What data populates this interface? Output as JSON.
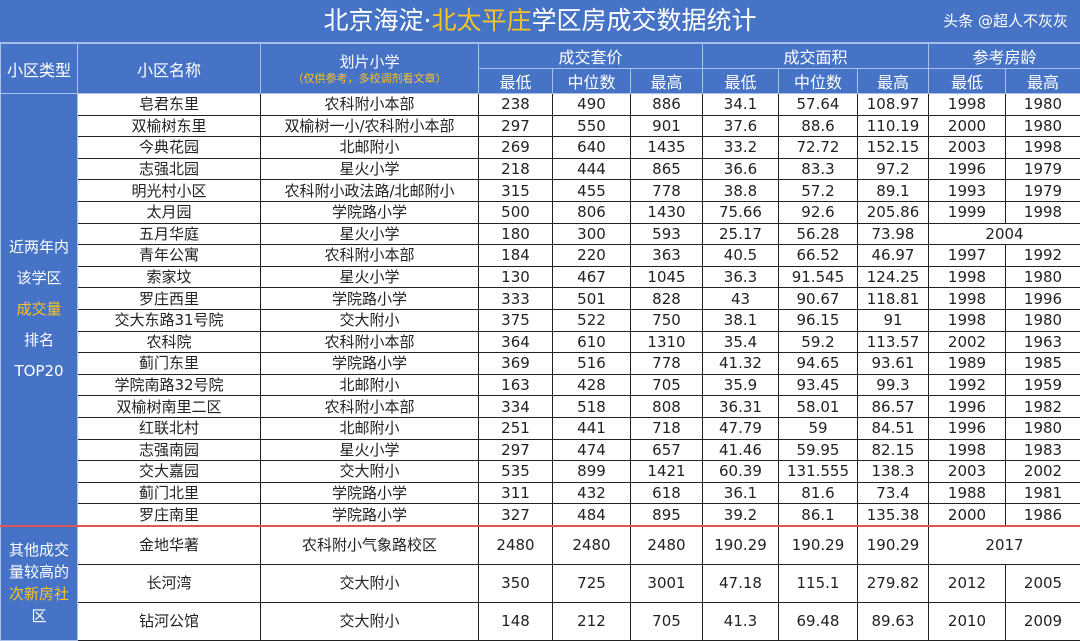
{
  "title": {
    "part1": "北京海淀·",
    "highlight": "北太平庄",
    "part2": "学区房成交数据统计"
  },
  "headers": {
    "type": "小区类型",
    "name": "小区名称",
    "school": "划片小学",
    "school_note": "（仅供参考，多校调剂看文章）",
    "price": "成交套价",
    "area": "成交面积",
    "age": "参考房龄",
    "min": "最低",
    "median": "中位数",
    "max": "最高"
  },
  "group1": {
    "lines": [
      "近两年内",
      "该学区",
      "成交量",
      "排名",
      "TOP20"
    ],
    "highlight_index": 2
  },
  "group2": {
    "lines": [
      "其他成交",
      "量较高的",
      "次新房社",
      "区"
    ],
    "highlight_text": "次新房"
  },
  "rows": [
    {
      "name": "皂君东里",
      "school": "农科附小本部",
      "price": [
        "238",
        "490",
        "886"
      ],
      "area": [
        "34.1",
        "57.64",
        "108.97"
      ],
      "age": [
        "1998",
        "1980"
      ]
    },
    {
      "name": "双榆树东里",
      "school": "双榆树一小/农科附小本部",
      "price": [
        "297",
        "550",
        "901"
      ],
      "area": [
        "37.6",
        "88.6",
        "110.19"
      ],
      "age": [
        "2000",
        "1980"
      ]
    },
    {
      "name": "今典花园",
      "school": "北邮附小",
      "price": [
        "269",
        "640",
        "1435"
      ],
      "area": [
        "33.2",
        "72.72",
        "152.15"
      ],
      "age": [
        "2003",
        "1998"
      ]
    },
    {
      "name": "志强北园",
      "school": "星火小学",
      "price": [
        "218",
        "444",
        "865"
      ],
      "area": [
        "36.6",
        "83.3",
        "97.2"
      ],
      "age": [
        "1996",
        "1979"
      ]
    },
    {
      "name": "明光村小区",
      "school": "农科附小政法路/北邮附小",
      "price": [
        "315",
        "455",
        "778"
      ],
      "area": [
        "38.8",
        "57.2",
        "89.1"
      ],
      "age": [
        "1993",
        "1979"
      ]
    },
    {
      "name": "太月园",
      "school": "学院路小学",
      "price": [
        "500",
        "806",
        "1430"
      ],
      "area": [
        "75.66",
        "92.6",
        "205.86"
      ],
      "age": [
        "1999",
        "1998"
      ]
    },
    {
      "name": "五月华庭",
      "school": "星火小学",
      "price": [
        "180",
        "300",
        "593"
      ],
      "area": [
        "25.17",
        "56.28",
        "73.98"
      ],
      "age": [
        "2004"
      ]
    },
    {
      "name": "青年公寓",
      "school": "农科附小本部",
      "price": [
        "184",
        "220",
        "363"
      ],
      "area": [
        "40.5",
        "66.52",
        "46.97"
      ],
      "age": [
        "1997",
        "1992"
      ]
    },
    {
      "name": "索家坟",
      "school": "星火小学",
      "price": [
        "130",
        "467",
        "1045"
      ],
      "area": [
        "36.3",
        "91.545",
        "124.25"
      ],
      "age": [
        "1998",
        "1980"
      ]
    },
    {
      "name": "罗庄西里",
      "school": "学院路小学",
      "price": [
        "333",
        "501",
        "828"
      ],
      "area": [
        "43",
        "90.67",
        "118.81"
      ],
      "age": [
        "1998",
        "1996"
      ]
    },
    {
      "name": "交大东路31号院",
      "school": "交大附小",
      "price": [
        "375",
        "522",
        "750"
      ],
      "area": [
        "38.1",
        "96.15",
        "91"
      ],
      "age": [
        "1998",
        "1980"
      ]
    },
    {
      "name": "农科院",
      "school": "农科附小本部",
      "price": [
        "364",
        "610",
        "1310"
      ],
      "area": [
        "35.4",
        "59.2",
        "113.57"
      ],
      "age": [
        "2002",
        "1963"
      ]
    },
    {
      "name": "蓟门东里",
      "school": "学院路小学",
      "price": [
        "369",
        "516",
        "778"
      ],
      "area": [
        "41.32",
        "94.65",
        "93.61"
      ],
      "age": [
        "1989",
        "1985"
      ]
    },
    {
      "name": "学院南路32号院",
      "school": "北邮附小",
      "price": [
        "163",
        "428",
        "705"
      ],
      "area": [
        "35.9",
        "93.45",
        "99.3"
      ],
      "age": [
        "1992",
        "1959"
      ]
    },
    {
      "name": "双榆树南里二区",
      "school": "农科附小本部",
      "price": [
        "334",
        "518",
        "808"
      ],
      "area": [
        "36.31",
        "58.01",
        "86.57"
      ],
      "age": [
        "1996",
        "1982"
      ]
    },
    {
      "name": "红联北村",
      "school": "北邮附小",
      "price": [
        "251",
        "441",
        "718"
      ],
      "area": [
        "47.79",
        "59",
        "84.51"
      ],
      "age": [
        "1996",
        "1980"
      ]
    },
    {
      "name": "志强南园",
      "school": "星火小学",
      "price": [
        "297",
        "474",
        "657"
      ],
      "area": [
        "41.46",
        "59.95",
        "82.15"
      ],
      "age": [
        "1998",
        "1983"
      ]
    },
    {
      "name": "交大嘉园",
      "school": "交大附小",
      "price": [
        "535",
        "899",
        "1421"
      ],
      "area": [
        "60.39",
        "131.555",
        "138.3"
      ],
      "age": [
        "2003",
        "2002"
      ]
    },
    {
      "name": "蓟门北里",
      "school": "学院路小学",
      "price": [
        "311",
        "432",
        "618"
      ],
      "area": [
        "36.1",
        "81.6",
        "73.4"
      ],
      "age": [
        "1988",
        "1981"
      ]
    },
    {
      "name": "罗庄南里",
      "school": "学院路小学",
      "price": [
        "327",
        "484",
        "895"
      ],
      "area": [
        "39.2",
        "86.1",
        "135.38"
      ],
      "age": [
        "2000",
        "1986"
      ]
    }
  ],
  "other_rows": [
    {
      "name": "金地华著",
      "school": "农科附小气象路校区",
      "price": [
        "2480",
        "2480",
        "2480"
      ],
      "area": [
        "190.29",
        "190.29",
        "190.29"
      ],
      "age": [
        "2017"
      ]
    },
    {
      "name": "长河湾",
      "school": "交大附小",
      "price": [
        "350",
        "725",
        "3001"
      ],
      "area": [
        "47.18",
        "115.1",
        "279.82"
      ],
      "age": [
        "2012",
        "2005"
      ]
    },
    {
      "name": "钻河公馆",
      "school": "交大附小",
      "price": [
        "148",
        "212",
        "705"
      ],
      "area": [
        "41.3",
        "69.48",
        "89.63"
      ],
      "age": [
        "2010",
        "2009"
      ]
    }
  ],
  "watermark": "头条 @超人不灰灰",
  "colors": {
    "header_bg": "#4673c5",
    "highlight": "#f7c325",
    "separator": "#e05656"
  }
}
